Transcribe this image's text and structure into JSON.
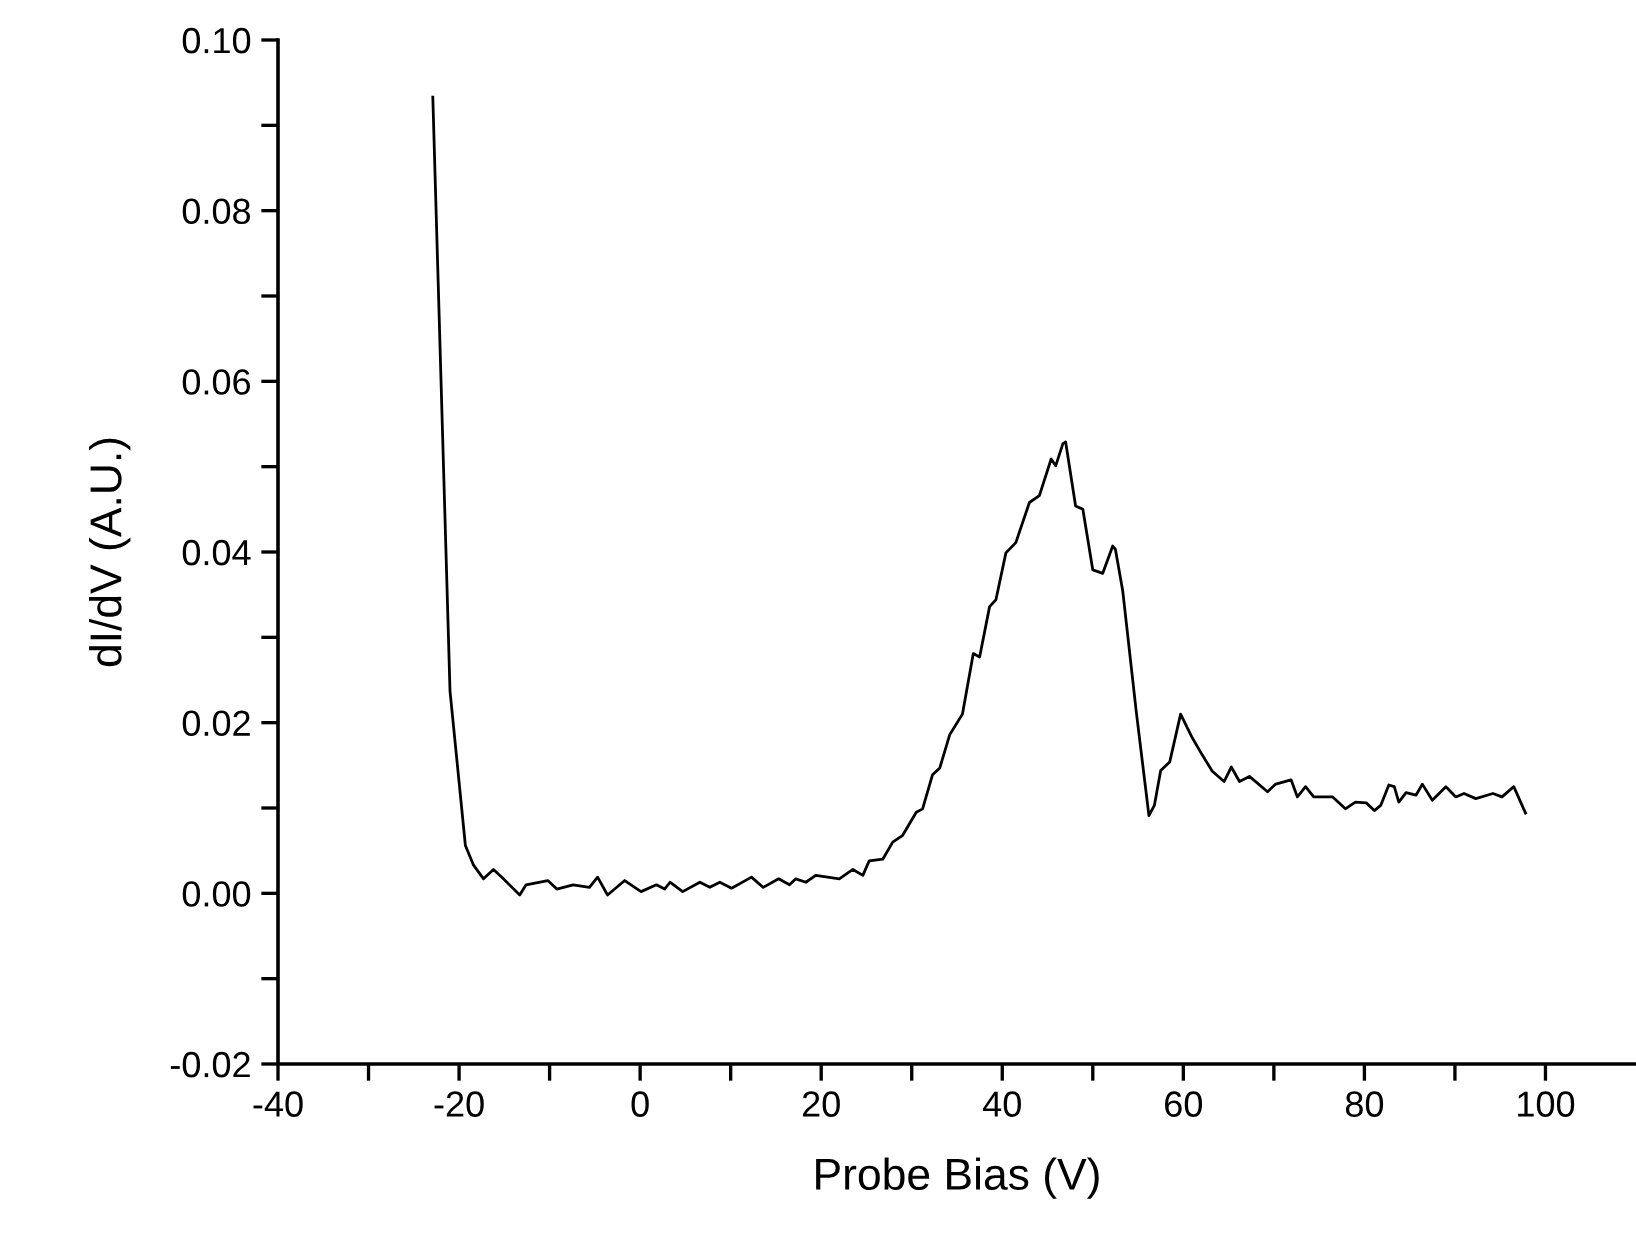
{
  "chart_data": {
    "type": "line",
    "xlabel": "Probe Bias (V)",
    "ylabel": "dI/dV (A.U.)",
    "xlim": [
      -40,
      110
    ],
    "ylim": [
      -0.02,
      0.1
    ],
    "xticks": [
      -40,
      {
        "value": -30,
        "label": null
      },
      -20,
      {
        "value": -10,
        "label": null
      },
      0,
      {
        "value": 10,
        "label": null
      },
      20,
      {
        "value": 30,
        "label": null
      },
      40,
      {
        "value": 50,
        "label": null
      },
      60,
      {
        "value": 70,
        "label": null
      },
      80,
      {
        "value": 90,
        "label": null
      },
      100
    ],
    "yticks": [
      {
        "value": -0.02,
        "label": "-0.02"
      },
      {
        "value": -0.01,
        "label": null
      },
      {
        "value": 0.0,
        "label": "0.00"
      },
      {
        "value": 0.01,
        "label": null
      },
      {
        "value": 0.02,
        "label": "0.02"
      },
      {
        "value": 0.03,
        "label": null
      },
      {
        "value": 0.04,
        "label": "0.04"
      },
      {
        "value": 0.05,
        "label": null
      },
      {
        "value": 0.06,
        "label": "0.06"
      },
      {
        "value": 0.07,
        "label": null
      },
      {
        "value": 0.08,
        "label": "0.08"
      },
      {
        "value": 0.09,
        "label": null
      },
      {
        "value": 0.1,
        "label": "0.10"
      }
    ],
    "marker": "none",
    "line_style": "solid",
    "series": [
      {
        "color": "#000000",
        "x": [
          -22.9,
          -21.0,
          -19.3,
          -18.4,
          -17.3,
          -16.2,
          -15.1,
          -13.3,
          -12.6,
          -10.2,
          -9.2,
          -7.4,
          -5.6,
          -4.7,
          -3.6,
          -1.7,
          0.1,
          1.8,
          2.7,
          3.3,
          4.7,
          6.6,
          7.7,
          8.8,
          10.1,
          12.3,
          13.6,
          15.3,
          16.5,
          17.2,
          18.3,
          19.4,
          22.0,
          23.5,
          24.6,
          25.3,
          26.8,
          27.9,
          29.0,
          30.5,
          31.2,
          32.3,
          33.1,
          34.2,
          35.6,
          36.8,
          37.5,
          38.6,
          39.3,
          40.4,
          41.5,
          43.0,
          44.1,
          45.4,
          45.9,
          46.7,
          47.0,
          48.1,
          48.9,
          50.0,
          51.1,
          52.2,
          52.5,
          53.3,
          54.8,
          56.2,
          56.8,
          57.5,
          58.5,
          59.7,
          61.0,
          62.1,
          63.2,
          64.5,
          65.3,
          66.2,
          67.3,
          69.3,
          70.2,
          71.9,
          72.6,
          73.5,
          74.4,
          76.5,
          77.9,
          79.0,
          80.2,
          81.1,
          81.8,
          82.7,
          83.3,
          83.8,
          84.6,
          85.7,
          86.4,
          87.5,
          89.0,
          90.1,
          91.0,
          92.3,
          94.2,
          95.2,
          96.5,
          97.8
        ],
        "values": [
          0.0933,
          0.0237,
          0.0056,
          0.0033,
          0.0017,
          0.0028,
          0.0017,
          -0.0002,
          0.001,
          0.0015,
          0.0005,
          0.001,
          0.0007,
          0.0019,
          -0.0002,
          0.0015,
          0.0002,
          0.001,
          0.0005,
          0.0013,
          0.0002,
          0.0013,
          0.0007,
          0.0013,
          0.0006,
          0.0019,
          0.0007,
          0.0017,
          0.001,
          0.0017,
          0.0013,
          0.0021,
          0.0017,
          0.0028,
          0.0021,
          0.0038,
          0.004,
          0.006,
          0.0068,
          0.0095,
          0.0099,
          0.0139,
          0.0147,
          0.0186,
          0.021,
          0.0281,
          0.0277,
          0.0336,
          0.0344,
          0.0399,
          0.0411,
          0.0458,
          0.0466,
          0.0509,
          0.0501,
          0.0527,
          0.0529,
          0.0454,
          0.045,
          0.0379,
          0.0375,
          0.0407,
          0.0403,
          0.0355,
          0.0213,
          0.0091,
          0.0103,
          0.0144,
          0.0154,
          0.021,
          0.0182,
          0.0162,
          0.0143,
          0.0131,
          0.0148,
          0.0131,
          0.0137,
          0.0119,
          0.0128,
          0.0133,
          0.0113,
          0.0125,
          0.0113,
          0.0113,
          0.0099,
          0.0107,
          0.0106,
          0.0097,
          0.0103,
          0.0127,
          0.0125,
          0.0107,
          0.0118,
          0.0115,
          0.0128,
          0.0109,
          0.0125,
          0.0113,
          0.0117,
          0.0111,
          0.0117,
          0.0113,
          0.0125,
          0.0094
        ]
      }
    ]
  }
}
